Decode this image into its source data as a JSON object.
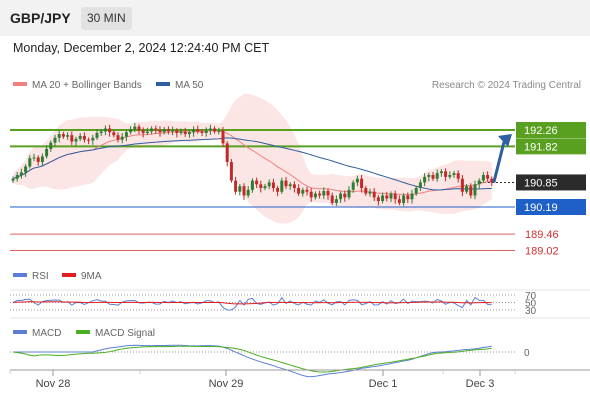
{
  "header": {
    "symbol": "GBP/JPY",
    "timeframe": "30 MIN"
  },
  "datetime": "Monday, December 2, 2024 12:24:40 PM CET",
  "credit": "Research © 2024 Trading Central",
  "legends": {
    "price": [
      {
        "label": "MA 20 + Bollinger Bands",
        "color": "#f08080"
      },
      {
        "label": "MA 50",
        "color": "#2f5f9f"
      }
    ],
    "rsi": [
      {
        "label": "RSI",
        "color": "#5b7fd6"
      },
      {
        "label": "9MA",
        "color": "#e02020"
      }
    ],
    "macd": [
      {
        "label": "MACD",
        "color": "#5b7fd6"
      },
      {
        "label": "MACD Signal",
        "color": "#4caf20"
      }
    ]
  },
  "colors": {
    "resistance": "#5aa020",
    "current": "#333333",
    "pivot": "#1f5fc8",
    "support": "#e06060",
    "candle_up": "#2e7d32",
    "candle_down": "#c62828",
    "arrow": "#2f5f9f"
  },
  "chart_data": {
    "type": "candlestick",
    "x_ticks": [
      "Nov 28",
      "Nov 29",
      "Dec 1",
      "Dec 3"
    ],
    "price_levels": [
      {
        "value": 192.26,
        "label": "192.26",
        "kind": "resistance"
      },
      {
        "value": 191.82,
        "label": "191.82",
        "kind": "resistance"
      },
      {
        "value": 190.85,
        "label": "190.85",
        "kind": "current"
      },
      {
        "value": 190.19,
        "label": "190.19",
        "kind": "pivot"
      },
      {
        "value": 189.46,
        "label": "189.46",
        "kind": "support"
      },
      {
        "value": 189.02,
        "label": "189.02",
        "kind": "support"
      }
    ],
    "closes": [
      190.95,
      191.05,
      191.12,
      191.28,
      191.5,
      191.52,
      191.4,
      191.55,
      191.75,
      191.92,
      192.05,
      192.15,
      192.08,
      192.12,
      191.95,
      192.02,
      192.1,
      192.0,
      191.98,
      192.05,
      192.18,
      192.22,
      192.3,
      192.2,
      192.12,
      192.0,
      192.08,
      192.2,
      192.28,
      192.35,
      192.25,
      192.18,
      192.22,
      192.3,
      192.26,
      192.2,
      192.28,
      192.22,
      192.25,
      192.18,
      192.22,
      192.15,
      192.2,
      192.28,
      192.22,
      192.18,
      192.25,
      192.3,
      192.22,
      192.24,
      191.9,
      191.4,
      190.9,
      190.6,
      190.75,
      190.5,
      190.65,
      190.9,
      190.8,
      190.7,
      190.75,
      190.85,
      190.7,
      190.6,
      190.9,
      190.75,
      190.8,
      190.7,
      190.55,
      190.65,
      190.6,
      190.45,
      190.55,
      190.5,
      190.62,
      190.5,
      190.3,
      190.4,
      190.55,
      190.45,
      190.65,
      190.85,
      190.95,
      190.7,
      190.55,
      190.6,
      190.45,
      190.35,
      190.5,
      190.42,
      190.55,
      190.4,
      190.3,
      190.5,
      190.4,
      190.55,
      190.7,
      190.85,
      191.0,
      191.05,
      190.95,
      191.1,
      191.15,
      191.0,
      191.05,
      191.1,
      190.95,
      190.6,
      190.75,
      190.5,
      190.8,
      190.9,
      191.05,
      190.95,
      190.85
    ],
    "forecast_target": 192.26,
    "rsi_levels": [
      70,
      50,
      30
    ],
    "macd_levels": [
      0
    ]
  }
}
